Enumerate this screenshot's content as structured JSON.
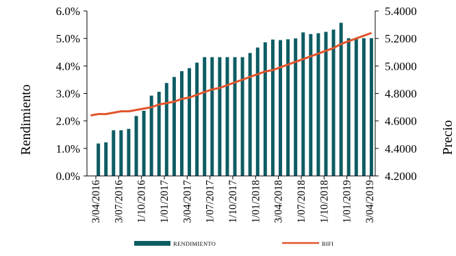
{
  "chart_data": {
    "type": "bar+line",
    "ylabel_left": "Rendimiento",
    "ylabel_right": "Precio",
    "left_axis": {
      "min": 0,
      "max": 0.06,
      "ticks": [
        "0.0%",
        "1.0%",
        "2.0%",
        "3.0%",
        "4.0%",
        "5.0%",
        "6.0%"
      ]
    },
    "right_axis": {
      "min": 4.2,
      "max": 5.4,
      "ticks": [
        "4.2000",
        "4.4000",
        "4.6000",
        "4.8000",
        "5.0000",
        "5.2000",
        "5.4000"
      ]
    },
    "x_ticks": [
      "3/04/2016",
      "3/07/2016",
      "1/10/2016",
      "1/01/2017",
      "3/04/2017",
      "1/07/2017",
      "1/10/2017",
      "1/01/2018",
      "3/04/2018",
      "1/07/2018",
      "1/10/2018",
      "1/01/2019",
      "3/04/2019"
    ],
    "grid": false,
    "legend_position": "bottom",
    "series": [
      {
        "name": "RENDIMIENTO",
        "kind": "bar",
        "color": "#0e5c63",
        "values": [
          0.0,
          0.0118,
          0.0122,
          0.0166,
          0.0166,
          0.0171,
          0.0218,
          0.0237,
          0.0292,
          0.0306,
          0.0338,
          0.036,
          0.0381,
          0.0392,
          0.0412,
          0.0432,
          0.0432,
          0.0432,
          0.0432,
          0.0432,
          0.0432,
          0.0447,
          0.0467,
          0.0486,
          0.0496,
          0.0494,
          0.0497,
          0.05,
          0.0522,
          0.0516,
          0.0519,
          0.0524,
          0.0532,
          0.0557,
          0.0501,
          0.0501,
          0.0501,
          0.0501
        ]
      },
      {
        "name": "BIFI",
        "kind": "line",
        "color": "#e2532a",
        "values": [
          4.64,
          4.65,
          4.65,
          4.66,
          4.67,
          4.67,
          4.68,
          4.69,
          4.7,
          4.72,
          4.73,
          4.74,
          4.76,
          4.77,
          4.79,
          4.81,
          4.83,
          4.84,
          4.86,
          4.88,
          4.9,
          4.92,
          4.94,
          4.96,
          4.97,
          4.99,
          5.01,
          5.03,
          5.05,
          5.07,
          5.09,
          5.11,
          5.13,
          5.16,
          5.18,
          5.2,
          5.22,
          5.24
        ]
      }
    ]
  }
}
